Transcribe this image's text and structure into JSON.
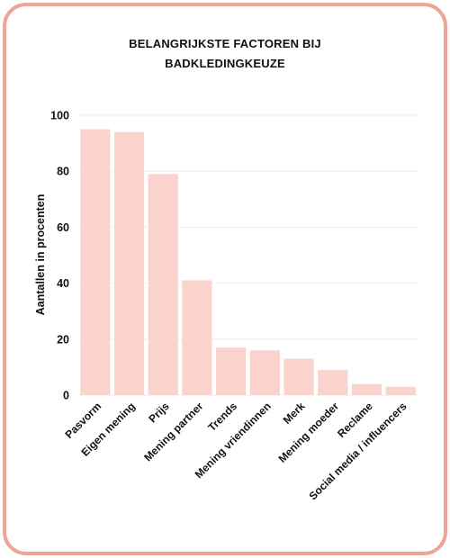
{
  "chart_data": {
    "type": "bar",
    "title_lines": [
      "BELANGRIJKSTE FACTOREN BIJ",
      "BADKLEDINGKEUZE"
    ],
    "xlabel": "",
    "ylabel": "Aantallen in procenten",
    "ylim": [
      0,
      100
    ],
    "yticks": [
      0,
      20,
      40,
      60,
      80,
      100
    ],
    "grid": true,
    "categories": [
      "Pasvorm",
      "Eigen mening",
      "Prijs",
      "Mening partner",
      "Trends",
      "Mening vriendinnen",
      "Merk",
      "Mening moeder",
      "Reclame",
      "Social media / influencers"
    ],
    "values": [
      95,
      94,
      79,
      41,
      17,
      16,
      13,
      9,
      4,
      3
    ],
    "colors": {
      "bar": "#f9d3cc",
      "frame": "#eea496",
      "grid": "#eeeeee",
      "text": "#111111"
    }
  }
}
